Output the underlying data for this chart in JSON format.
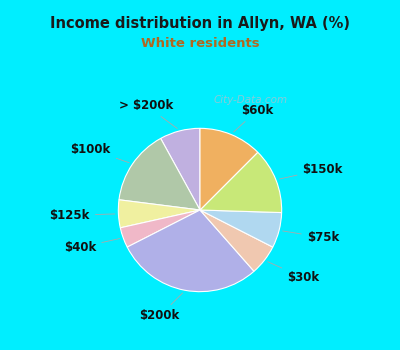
{
  "title": "Income distribution in Allyn, WA (%)",
  "subtitle": "White residents",
  "title_color": "#1a1a1a",
  "subtitle_color": "#b06820",
  "background_outer": "#00eeff",
  "background_inner_top": "#e0f5f0",
  "background_inner_bottom": "#f5fff8",
  "watermark": "City-Data.com",
  "labels": [
    "> $200k",
    "$100k",
    "$125k",
    "$40k",
    "$200k",
    "$30k",
    "$75k",
    "$150k",
    "$60k"
  ],
  "values": [
    8.0,
    15.0,
    5.5,
    4.0,
    29.0,
    6.0,
    7.0,
    13.0,
    12.5
  ],
  "colors": [
    "#c0b0e0",
    "#b0c8a8",
    "#f0f0a0",
    "#f0b8c8",
    "#b0b0e8",
    "#f0c8b0",
    "#b0d8f0",
    "#c8e878",
    "#f0b060"
  ],
  "startangle": 90,
  "label_fontsize": 8.5,
  "label_color": "#111111",
  "label_distances": {
    "> $200k": 1.32,
    "$100k": 1.32,
    "$125k": 1.35,
    "$40k": 1.35,
    "$200k": 1.32,
    "$30k": 1.35,
    "$75k": 1.35,
    "$150k": 1.35,
    "$60k": 1.32
  }
}
